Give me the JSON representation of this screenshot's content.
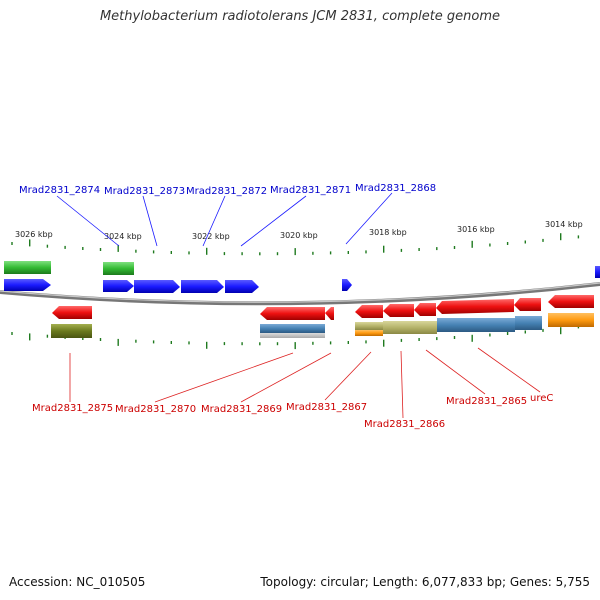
{
  "title": "Methylobacterium radiotolerans JCM 2831, complete genome",
  "footer": {
    "accession": "Accession: NC_010505",
    "topology": "Topology: circular; Length: 6,077,833 bp; Genes: 5,755"
  },
  "colors": {
    "forward_label": "#0000cc",
    "reverse_label": "#cc0000",
    "forward_gene": "#1a1aff",
    "reverse_gene": "#ee1111",
    "tick": "#1f7a1f",
    "backbone": "#888888"
  },
  "tick_labels": [
    "3026 kbp",
    "3024 kbp",
    "3022 kbp",
    "3020 kbp",
    "3018 kbp",
    "3016 kbp",
    "3014 kbp"
  ],
  "genes_forward": [
    "Mrad2831_2874",
    "Mrad2831_2873",
    "Mrad2831_2872",
    "Mrad2831_2871",
    "Mrad2831_2868"
  ],
  "genes_reverse": [
    "Mrad2831_2875",
    "Mrad2831_2870",
    "Mrad2831_2869",
    "Mrad2831_2867",
    "Mrad2831_2866",
    "Mrad2831_2865",
    "ureC"
  ]
}
